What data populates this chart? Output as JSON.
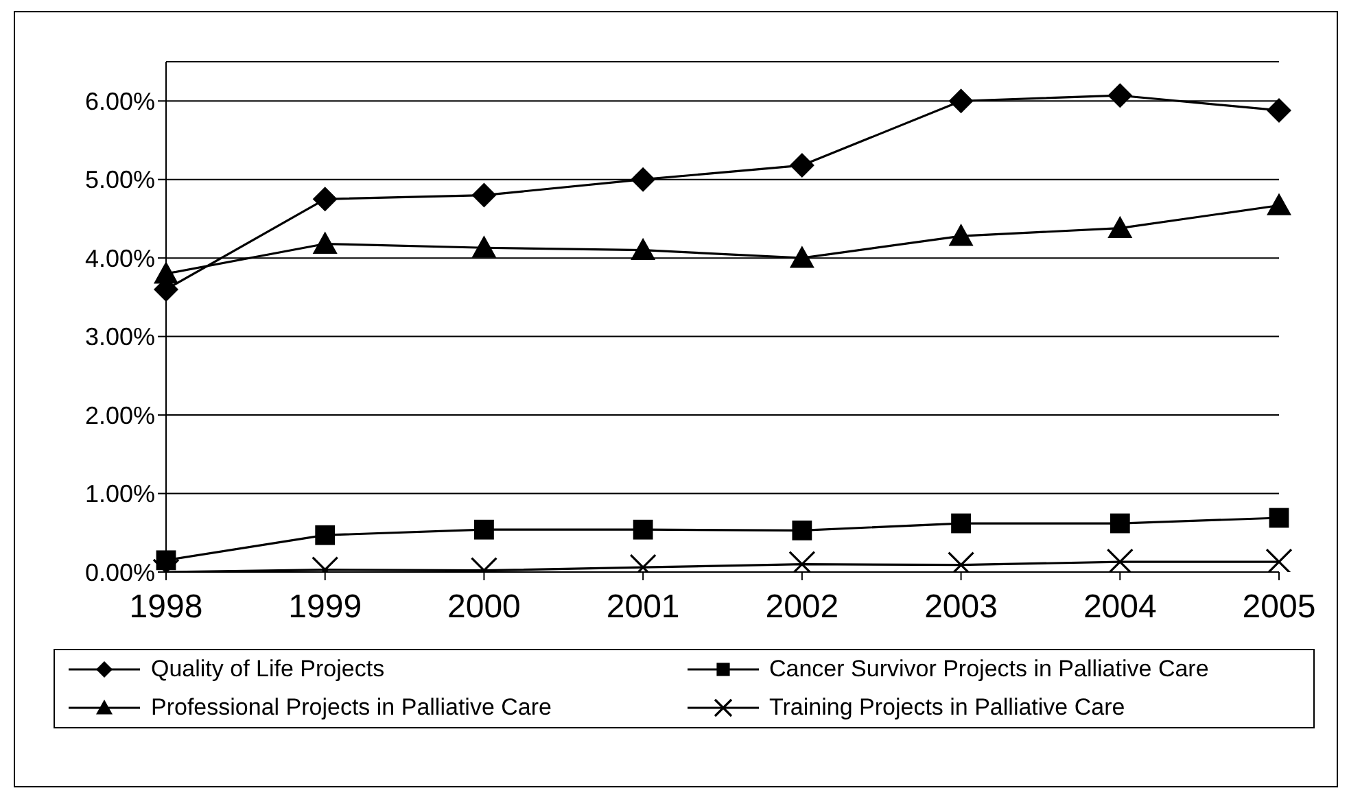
{
  "chart_data": {
    "type": "line",
    "categories": [
      "1998",
      "1999",
      "2000",
      "2001",
      "2002",
      "2003",
      "2004",
      "2005"
    ],
    "series": [
      {
        "name": "Quality of Life Projects",
        "color": "#000000",
        "marker": "diamond",
        "values": [
          3.6,
          4.75,
          4.8,
          5.0,
          5.18,
          6.0,
          6.07,
          5.88
        ]
      },
      {
        "name": "Cancer Survivor Projects in Palliative Care",
        "color": "#000000",
        "marker": "square",
        "values": [
          0.15,
          0.47,
          0.54,
          0.54,
          0.53,
          0.62,
          0.62,
          0.69
        ]
      },
      {
        "name": "Professional Projects in Palliative Care",
        "color": "#000000",
        "marker": "triangle",
        "values": [
          3.8,
          4.18,
          4.13,
          4.1,
          4.0,
          4.28,
          4.38,
          4.67
        ]
      },
      {
        "name": "Training Projects in Palliative Care",
        "color": "#000000",
        "marker": "cross",
        "values": [
          0.0,
          0.03,
          0.02,
          0.06,
          0.1,
          0.09,
          0.13,
          0.13
        ]
      }
    ],
    "ylim": [
      0,
      6.5
    ],
    "yticks": [
      {
        "value": 0,
        "label": "0.00%"
      },
      {
        "value": 1,
        "label": "1.00%"
      },
      {
        "value": 2,
        "label": "2.00%"
      },
      {
        "value": 3,
        "label": "3.00%"
      },
      {
        "value": 4,
        "label": "4.00%"
      },
      {
        "value": 5,
        "label": "5.00%"
      },
      {
        "value": 6,
        "label": "6.00%"
      }
    ],
    "grid": "y",
    "legend": "bottom",
    "line_style": "solid"
  }
}
